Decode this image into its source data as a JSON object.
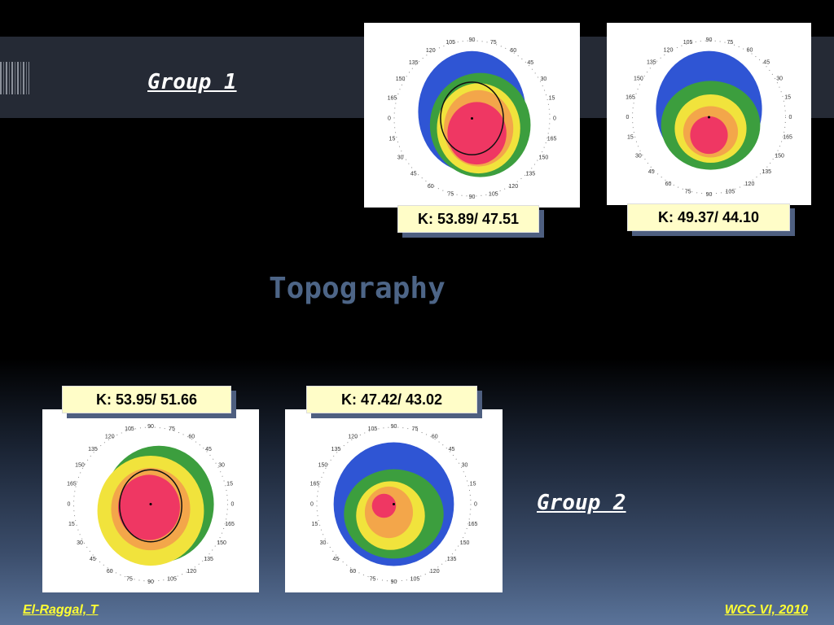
{
  "slide": {
    "title": "Topography",
    "group1": "Group 1",
    "group2": "Group 2",
    "footer_left": "El-Raggal, T",
    "footer_right": "WCC VI, 2010"
  },
  "maps": {
    "angle_labels": [
      "0",
      "15",
      "30",
      "45",
      "60",
      "75",
      "90",
      "105",
      "120",
      "135",
      "150",
      "165"
    ],
    "k_values": [
      "K: 53.89/ 47.51",
      "K: 49.37/ 44.10",
      "K: 53.95/ 51.66",
      "K: 47.42/ 43.02"
    ]
  }
}
